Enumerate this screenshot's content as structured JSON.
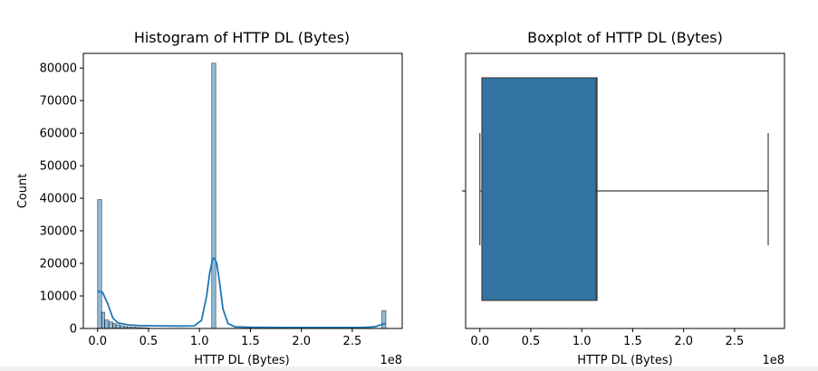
{
  "chart_data": [
    {
      "type": "bar",
      "title": "Histogram of HTTP DL (Bytes)",
      "xlabel": "HTTP DL (Bytes)",
      "ylabel": "Count",
      "x_offset_label": "1e8",
      "xlim": [
        -0.14,
        2.99
      ],
      "ylim": [
        0,
        84500
      ],
      "xticks": [
        0.0,
        0.5,
        1.0,
        1.5,
        2.0,
        2.5
      ],
      "xtick_labels": [
        "0.0",
        "0.5",
        "1.0",
        "1.5",
        "2.0",
        "2.5"
      ],
      "yticks": [
        0,
        10000,
        20000,
        30000,
        40000,
        50000,
        60000,
        70000,
        80000
      ],
      "ytick_labels": [
        "0",
        "10000",
        "20000",
        "30000",
        "40000",
        "50000",
        "60000",
        "70000",
        "80000"
      ],
      "bins": [
        {
          "x0": 0.0,
          "x1": 0.04,
          "count": 39600
        },
        {
          "x0": 0.04,
          "x1": 0.07,
          "count": 5000
        },
        {
          "x0": 0.07,
          "x1": 0.11,
          "count": 2600
        },
        {
          "x0": 0.11,
          "x1": 0.15,
          "count": 2000
        },
        {
          "x0": 0.15,
          "x1": 0.18,
          "count": 1500
        },
        {
          "x0": 0.18,
          "x1": 0.22,
          "count": 1100
        },
        {
          "x0": 0.22,
          "x1": 0.26,
          "count": 800
        },
        {
          "x0": 0.26,
          "x1": 0.29,
          "count": 600
        },
        {
          "x0": 0.29,
          "x1": 0.33,
          "count": 500
        },
        {
          "x0": 0.33,
          "x1": 0.37,
          "count": 400
        },
        {
          "x0": 0.37,
          "x1": 0.4,
          "count": 300
        },
        {
          "x0": 0.4,
          "x1": 0.44,
          "count": 250
        },
        {
          "x0": 0.44,
          "x1": 0.48,
          "count": 200
        },
        {
          "x0": 0.48,
          "x1": 0.51,
          "count": 150
        },
        {
          "x0": 1.12,
          "x1": 1.16,
          "count": 81500
        },
        {
          "x0": 2.79,
          "x1": 2.83,
          "count": 5500
        }
      ],
      "kde": {
        "x": [
          0.0,
          0.05,
          0.1,
          0.15,
          0.2,
          0.3,
          0.4,
          0.6,
          0.8,
          0.95,
          1.02,
          1.07,
          1.1,
          1.13,
          1.15,
          1.17,
          1.2,
          1.23,
          1.28,
          1.35,
          1.5,
          1.8,
          2.2,
          2.6,
          2.72,
          2.77,
          2.83
        ],
        "y": [
          11500,
          11000,
          7500,
          3200,
          1700,
          1100,
          900,
          800,
          750,
          800,
          2500,
          10000,
          17000,
          21500,
          21500,
          20000,
          13500,
          6000,
          1500,
          500,
          350,
          300,
          300,
          300,
          500,
          1000,
          1600
        ]
      },
      "colors": {
        "bar": "#1f77b4",
        "line": "#1f77b4"
      }
    },
    {
      "type": "box",
      "title": "Boxplot of HTTP DL (Bytes)",
      "xlabel": "HTTP DL (Bytes)",
      "x_offset_label": "1e8",
      "xlim": [
        -0.14,
        2.99
      ],
      "xticks": [
        0.0,
        0.5,
        1.0,
        1.5,
        2.0,
        2.5
      ],
      "xtick_labels": [
        "0.0",
        "0.5",
        "1.0",
        "1.5",
        "2.0",
        "2.5"
      ],
      "whisker_low": 0.0,
      "q1": 0.02,
      "median": 1.14,
      "q3": 1.15,
      "whisker_high": 2.83,
      "colors": {
        "box": "#3274a1"
      }
    }
  ]
}
